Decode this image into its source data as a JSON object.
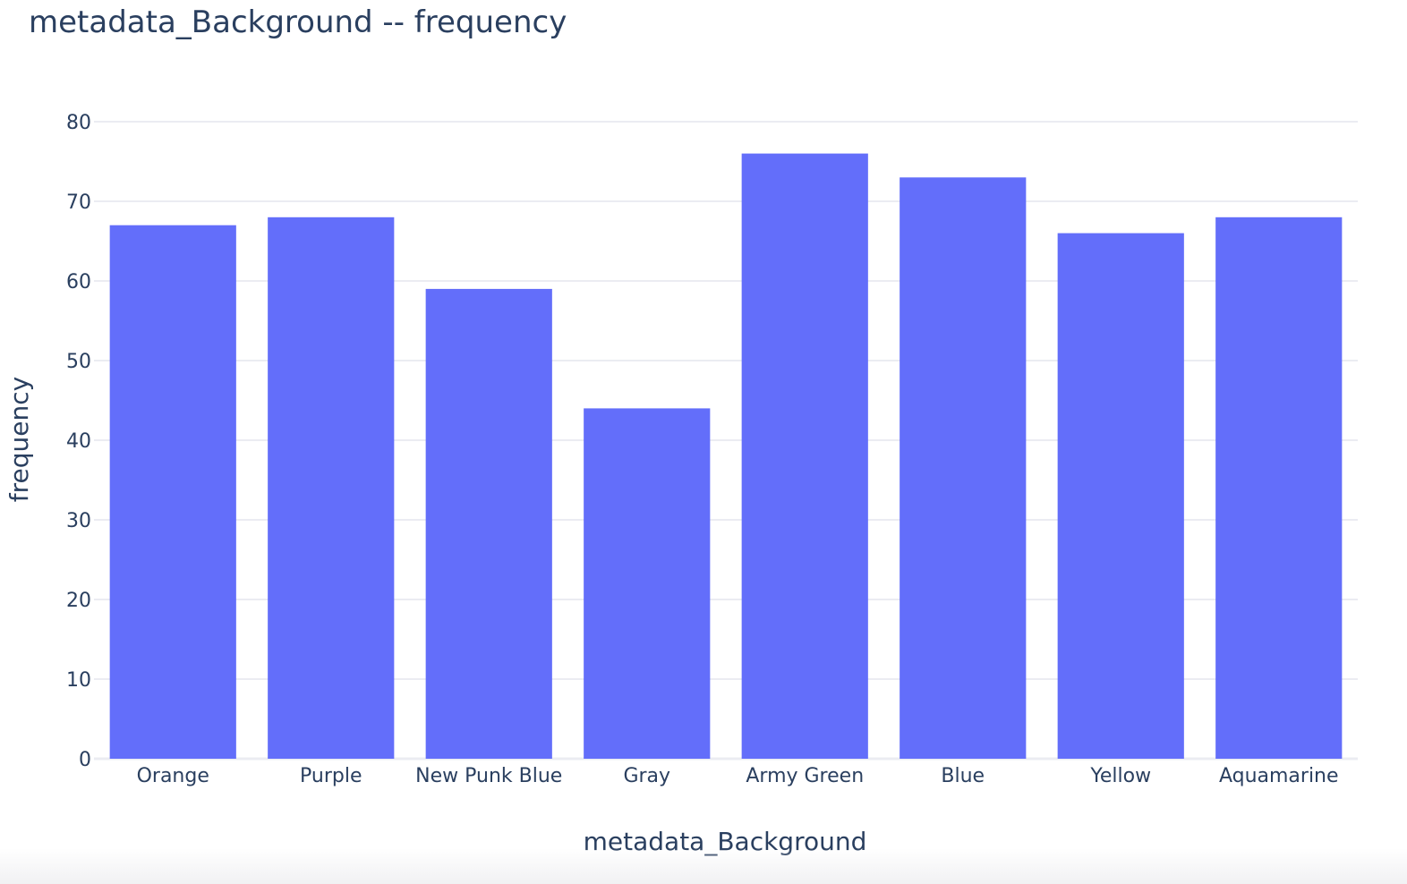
{
  "chart_data": {
    "type": "bar",
    "title": "metadata_Background -- frequency",
    "xlabel": "metadata_Background",
    "ylabel": "frequency",
    "categories": [
      "Orange",
      "Purple",
      "New Punk Blue",
      "Gray",
      "Army Green",
      "Blue",
      "Yellow",
      "Aquamarine"
    ],
    "values": [
      67,
      68,
      59,
      44,
      76,
      73,
      66,
      68
    ],
    "ylim": [
      0,
      80
    ],
    "yticks": [
      "0",
      "10",
      "20",
      "30",
      "40",
      "50",
      "60",
      "70",
      "80"
    ],
    "grid": true,
    "bar_color": "#636efa",
    "grid_color": "#ebecf2",
    "text_color": "#2a3f5f"
  }
}
